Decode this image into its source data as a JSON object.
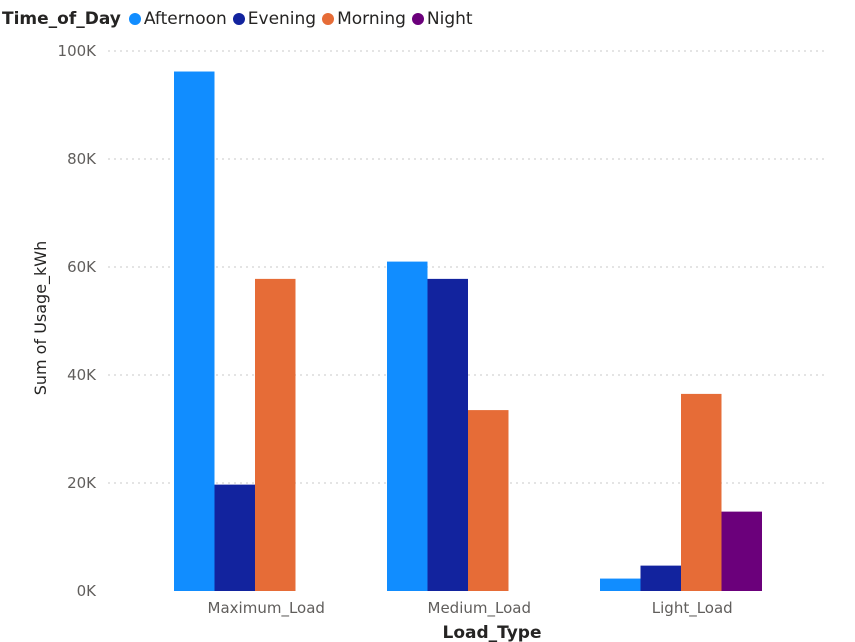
{
  "chart_data": {
    "type": "bar",
    "legend_title": "Time_of_Day",
    "legend_position": "top-left",
    "xlabel": "Load_Type",
    "ylabel": "Sum of Usage_kWh",
    "categories": [
      "Maximum_Load",
      "Medium_Load",
      "Light_Load"
    ],
    "series": [
      {
        "name": "Afternoon",
        "color": "#118DFF",
        "values": [
          96200,
          61000,
          2300
        ]
      },
      {
        "name": "Evening",
        "color": "#12239E",
        "values": [
          19700,
          57800,
          4700
        ]
      },
      {
        "name": "Morning",
        "color": "#E66C37",
        "values": [
          57800,
          33500,
          36500
        ]
      },
      {
        "name": "Night",
        "color": "#6B007B",
        "values": [
          0,
          0,
          14700
        ]
      }
    ],
    "ylim": [
      0,
      100000
    ],
    "y_ticks": [
      0,
      20000,
      40000,
      60000,
      80000,
      100000
    ],
    "y_tick_labels": [
      "0K",
      "20K",
      "40K",
      "60K",
      "80K",
      "100K"
    ],
    "grid": true
  }
}
